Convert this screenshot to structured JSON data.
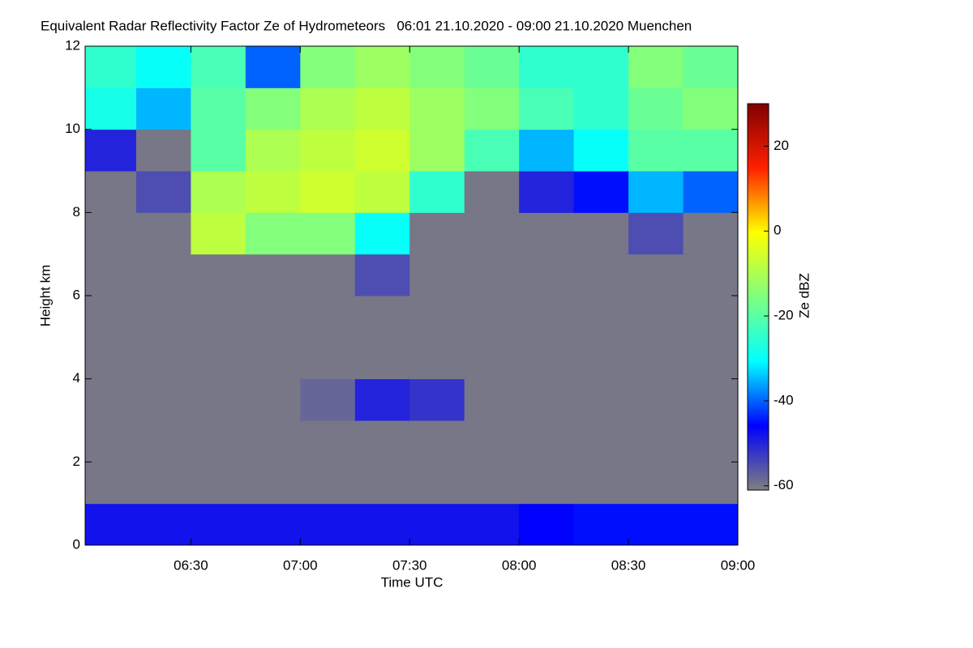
{
  "chart_data": {
    "type": "heatmap",
    "title": "Equivalent Radar Reflectivity Factor Ze of Hydrometeors   06:01 21.10.2020 - 09:00 21.10.2020 Muenchen",
    "xlabel": "Time UTC",
    "ylabel": "Height km",
    "colorbar_label": "Ze dBZ",
    "xlim": [
      6.0167,
      9.0
    ],
    "xticks": [
      {
        "value": 6.5,
        "label": "06:30"
      },
      {
        "value": 7.0,
        "label": "07:00"
      },
      {
        "value": 7.5,
        "label": "07:30"
      },
      {
        "value": 8.0,
        "label": "08:00"
      },
      {
        "value": 8.5,
        "label": "08:30"
      },
      {
        "value": 9.0,
        "label": "09:00"
      }
    ],
    "ylim": [
      0,
      12
    ],
    "yticks": [
      0,
      2,
      4,
      6,
      8,
      10,
      12
    ],
    "clim": [
      -61,
      30
    ],
    "cticks": [
      -60,
      -40,
      -20,
      0,
      20
    ],
    "colors": [
      "#7f7f7f",
      "#0000ff",
      "#00ffff",
      "#7fff7f",
      "#ffff00",
      "#ff2000",
      "#800000"
    ],
    "x_bins": [
      6.0,
      6.25,
      6.5,
      6.75,
      7.0,
      7.25,
      7.5,
      7.75,
      8.0,
      8.25,
      8.5,
      8.75,
      9.0
    ],
    "y_bins": [
      0,
      1,
      2,
      3,
      4,
      5,
      6,
      7,
      8,
      9,
      10,
      11,
      12
    ],
    "values": [
      [
        -48,
        -48,
        -48,
        -48,
        -48,
        -48,
        -48,
        -48,
        -46,
        -45,
        -45,
        -45
      ],
      [
        -60,
        -60,
        -60,
        -60,
        -60,
        -60,
        -60,
        -60,
        -60,
        -60,
        -60,
        -60
      ],
      [
        -60,
        -60,
        -60,
        -60,
        -60,
        -60,
        -60,
        -60,
        -60,
        -60,
        -60,
        -60
      ],
      [
        -60,
        -60,
        -60,
        -60,
        -58,
        -50,
        -52,
        -60,
        -60,
        -60,
        -60,
        -60
      ],
      [
        -60,
        -60,
        -60,
        -60,
        -60,
        -60,
        -60,
        -60,
        -60,
        -60,
        -60,
        -60
      ],
      [
        -60,
        -60,
        -60,
        -60,
        -60,
        -60,
        -60,
        -60,
        -60,
        -60,
        -60,
        -60
      ],
      [
        -60,
        -60,
        -60,
        -60,
        -60,
        -55,
        -60,
        -60,
        -60,
        -60,
        -60,
        -60
      ],
      [
        -60,
        -60,
        -8,
        -15,
        -15,
        -30,
        -60,
        -60,
        -60,
        -60,
        -55,
        -60
      ],
      [
        -60,
        -55,
        -10,
        -8,
        -6,
        -8,
        -25,
        -60,
        -50,
        -45,
        -35,
        -40
      ],
      [
        -50,
        -60,
        -20,
        -10,
        -8,
        -6,
        -12,
        -22,
        -35,
        -30,
        -20,
        -20
      ],
      [
        -28,
        -35,
        -20,
        -15,
        -10,
        -8,
        -12,
        -15,
        -22,
        -25,
        -18,
        -15
      ],
      [
        -25,
        -30,
        -22,
        -40,
        -15,
        -12,
        -15,
        -18,
        -25,
        -25,
        -15,
        -18
      ]
    ]
  }
}
